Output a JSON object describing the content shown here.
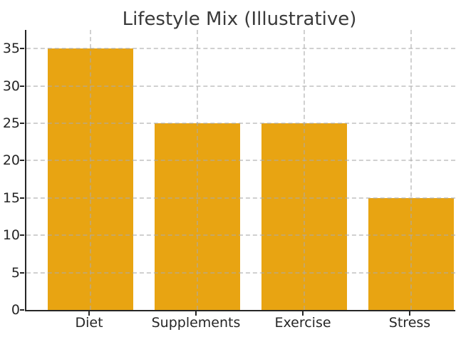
{
  "figure": {
    "background_color": "#ffffff"
  },
  "chart_data": {
    "type": "bar",
    "title": "Lifestyle Mix (Illustrative)",
    "categories": [
      "Diet",
      "Supplements",
      "Exercise",
      "Stress"
    ],
    "values": [
      35,
      25,
      25,
      15
    ],
    "xlabel": "",
    "ylabel": "",
    "ylim": [
      0,
      37.5
    ],
    "yticks": [
      0,
      5,
      10,
      15,
      20,
      25,
      30,
      35
    ],
    "grid": "both-axes-dashed",
    "legend_position": "none",
    "bar_color": "#E8A412",
    "grid_color": "#cfcfcf",
    "spine_color": "#262626",
    "tick_label_color": "#262626",
    "title_color": "#3a3a3a"
  }
}
